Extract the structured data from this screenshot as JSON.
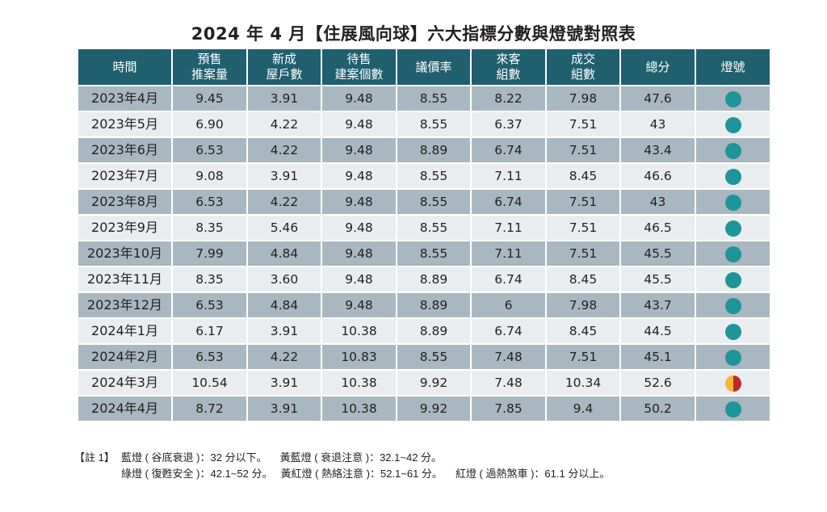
{
  "title": "2024 年 4 月【住展風向球】六大指標分數與燈號對照表",
  "colors": {
    "header_bg": "#1f5f6e",
    "row_dark": "#a9b7c0",
    "row_light": "#e9edf0",
    "blue_light": "#1f9499",
    "yellow": "#f5b731",
    "red": "#c1272d"
  },
  "table": {
    "headers": [
      [
        "時間"
      ],
      [
        "預售",
        "推案量"
      ],
      [
        "新成",
        "屋戶數"
      ],
      [
        "待售",
        "建案個數"
      ],
      [
        "議價率"
      ],
      [
        "來客",
        "組數"
      ],
      [
        "成交",
        "組數"
      ],
      [
        "總分"
      ],
      [
        "燈號"
      ]
    ],
    "rows": [
      {
        "month": "2023年4月",
        "c1": "9.45",
        "c2": "3.91",
        "c3": "9.48",
        "c4": "8.55",
        "c5": "8.22",
        "c6": "7.98",
        "total": "47.6",
        "light": "blue"
      },
      {
        "month": "2023年5月",
        "c1": "6.90",
        "c2": "4.22",
        "c3": "9.48",
        "c4": "8.55",
        "c5": "6.37",
        "c6": "7.51",
        "total": "43",
        "light": "blue"
      },
      {
        "month": "2023年6月",
        "c1": "6.53",
        "c2": "4.22",
        "c3": "9.48",
        "c4": "8.89",
        "c5": "6.74",
        "c6": "7.51",
        "total": "43.4",
        "light": "blue"
      },
      {
        "month": "2023年7月",
        "c1": "9.08",
        "c2": "3.91",
        "c3": "9.48",
        "c4": "8.55",
        "c5": "7.11",
        "c6": "8.45",
        "total": "46.6",
        "light": "blue"
      },
      {
        "month": "2023年8月",
        "c1": "6.53",
        "c2": "4.22",
        "c3": "9.48",
        "c4": "8.55",
        "c5": "6.74",
        "c6": "7.51",
        "total": "43",
        "light": "blue"
      },
      {
        "month": "2023年9月",
        "c1": "8.35",
        "c2": "5.46",
        "c3": "9.48",
        "c4": "8.55",
        "c5": "7.11",
        "c6": "7.51",
        "total": "46.5",
        "light": "blue"
      },
      {
        "month": "2023年10月",
        "c1": "7.99",
        "c2": "4.84",
        "c3": "9.48",
        "c4": "8.55",
        "c5": "7.11",
        "c6": "7.51",
        "total": "45.5",
        "light": "blue"
      },
      {
        "month": "2023年11月",
        "c1": "8.35",
        "c2": "3.60",
        "c3": "9.48",
        "c4": "8.89",
        "c5": "6.74",
        "c6": "8.45",
        "total": "45.5",
        "light": "blue"
      },
      {
        "month": "2023年12月",
        "c1": "6.53",
        "c2": "4.84",
        "c3": "9.48",
        "c4": "8.89",
        "c5": "6",
        "c6": "7.98",
        "total": "43.7",
        "light": "blue"
      },
      {
        "month": "2024年1月",
        "c1": "6.17",
        "c2": "3.91",
        "c3": "10.38",
        "c4": "8.89",
        "c5": "6.74",
        "c6": "8.45",
        "total": "44.5",
        "light": "blue"
      },
      {
        "month": "2024年2月",
        "c1": "6.53",
        "c2": "4.22",
        "c3": "10.83",
        "c4": "8.55",
        "c5": "7.48",
        "c6": "7.51",
        "total": "45.1",
        "light": "blue"
      },
      {
        "month": "2024年3月",
        "c1": "10.54",
        "c2": "3.91",
        "c3": "10.38",
        "c4": "9.92",
        "c5": "7.48",
        "c6": "10.34",
        "total": "52.6",
        "light": "yellow-red"
      },
      {
        "month": "2024年4月",
        "c1": "8.72",
        "c2": "3.91",
        "c3": "10.38",
        "c4": "9.92",
        "c5": "7.85",
        "c6": "9.4",
        "total": "50.2",
        "light": "blue"
      }
    ]
  },
  "notes": {
    "label": "【註 1】",
    "line1": [
      "藍燈 ( 谷底衰退 )：32 分以下。",
      "黃藍燈 ( 衰退注意 )：32.1~42 分。"
    ],
    "line2": [
      "綠燈 ( 復甦安全 )：42.1~52 分。",
      "黃紅燈 ( 熱絡注意 )：52.1~61 分。",
      "紅燈 ( 過熱煞車 )：61.1 分以上。"
    ]
  }
}
